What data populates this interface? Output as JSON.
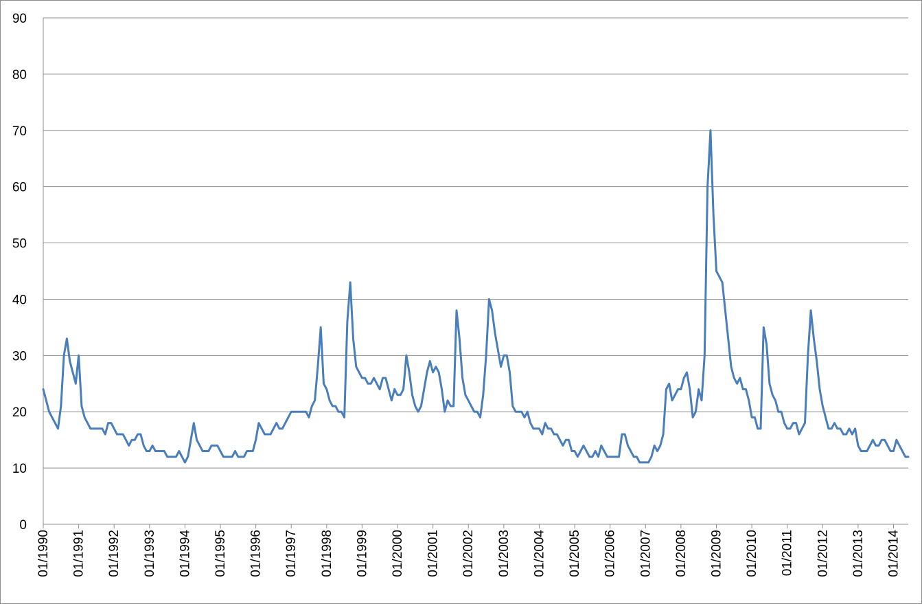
{
  "chart_data": {
    "type": "line",
    "title": "",
    "xlabel": "",
    "ylabel": "",
    "xlim": [
      "1990-01",
      "2014-06"
    ],
    "ylim": [
      0,
      90
    ],
    "ytick_labels": [
      "0",
      "10",
      "20",
      "30",
      "40",
      "50",
      "60",
      "70",
      "80",
      "90"
    ],
    "xtick_labels": [
      "01/1990",
      "01/1991",
      "01/1992",
      "01/1993",
      "01/1994",
      "01/1995",
      "01/1996",
      "01/1997",
      "01/1998",
      "01/1999",
      "01/2000",
      "01/2001",
      "01/2002",
      "01/2003",
      "01/2004",
      "01/2005",
      "01/2006",
      "01/2007",
      "01/2008",
      "01/2009",
      "01/2010",
      "01/2011",
      "01/2012",
      "01/2013",
      "01/2014"
    ],
    "grid": "horizontal",
    "legend": "none",
    "colors": {
      "line": "#4a7ebb",
      "grid": "#8c8c8c",
      "axis": "#8c8c8c"
    },
    "series": [
      {
        "x": [
          "1990-01",
          "1990-02",
          "1990-03",
          "1990-04",
          "1990-05",
          "1990-06",
          "1990-07",
          "1990-08",
          "1990-09",
          "1990-10",
          "1990-11",
          "1990-12",
          "1991-01",
          "1991-02",
          "1991-03",
          "1991-04",
          "1991-05",
          "1991-06",
          "1991-07",
          "1991-08",
          "1991-09",
          "1991-10",
          "1991-11",
          "1991-12",
          "1992-01",
          "1992-02",
          "1992-03",
          "1992-04",
          "1992-05",
          "1992-06",
          "1992-07",
          "1992-08",
          "1992-09",
          "1992-10",
          "1992-11",
          "1992-12",
          "1993-01",
          "1993-02",
          "1993-03",
          "1993-04",
          "1993-05",
          "1993-06",
          "1993-07",
          "1993-08",
          "1993-09",
          "1993-10",
          "1993-11",
          "1993-12",
          "1994-01",
          "1994-02",
          "1994-03",
          "1994-04",
          "1994-05",
          "1994-06",
          "1994-07",
          "1994-08",
          "1994-09",
          "1994-10",
          "1994-11",
          "1994-12",
          "1995-01",
          "1995-02",
          "1995-03",
          "1995-04",
          "1995-05",
          "1995-06",
          "1995-07",
          "1995-08",
          "1995-09",
          "1995-10",
          "1995-11",
          "1995-12",
          "1996-01",
          "1996-02",
          "1996-03",
          "1996-04",
          "1996-05",
          "1996-06",
          "1996-07",
          "1996-08",
          "1996-09",
          "1996-10",
          "1996-11",
          "1996-12",
          "1997-01",
          "1997-02",
          "1997-03",
          "1997-04",
          "1997-05",
          "1997-06",
          "1997-07",
          "1997-08",
          "1997-09",
          "1997-10",
          "1997-11",
          "1997-12",
          "1998-01",
          "1998-02",
          "1998-03",
          "1998-04",
          "1998-05",
          "1998-06",
          "1998-07",
          "1998-08",
          "1998-09",
          "1998-10",
          "1998-11",
          "1998-12",
          "1999-01",
          "1999-02",
          "1999-03",
          "1999-04",
          "1999-05",
          "1999-06",
          "1999-07",
          "1999-08",
          "1999-09",
          "1999-10",
          "1999-11",
          "1999-12",
          "2000-01",
          "2000-02",
          "2000-03",
          "2000-04",
          "2000-05",
          "2000-06",
          "2000-07",
          "2000-08",
          "2000-09",
          "2000-10",
          "2000-11",
          "2000-12",
          "2001-01",
          "2001-02",
          "2001-03",
          "2001-04",
          "2001-05",
          "2001-06",
          "2001-07",
          "2001-08",
          "2001-09",
          "2001-10",
          "2001-11",
          "2001-12",
          "2002-01",
          "2002-02",
          "2002-03",
          "2002-04",
          "2002-05",
          "2002-06",
          "2002-07",
          "2002-08",
          "2002-09",
          "2002-10",
          "2002-11",
          "2002-12",
          "2003-01",
          "2003-02",
          "2003-03",
          "2003-04",
          "2003-05",
          "2003-06",
          "2003-07",
          "2003-08",
          "2003-09",
          "2003-10",
          "2003-11",
          "2003-12",
          "2004-01",
          "2004-02",
          "2004-03",
          "2004-04",
          "2004-05",
          "2004-06",
          "2004-07",
          "2004-08",
          "2004-09",
          "2004-10",
          "2004-11",
          "2004-12",
          "2005-01",
          "2005-02",
          "2005-03",
          "2005-04",
          "2005-05",
          "2005-06",
          "2005-07",
          "2005-08",
          "2005-09",
          "2005-10",
          "2005-11",
          "2005-12",
          "2006-01",
          "2006-02",
          "2006-03",
          "2006-04",
          "2006-05",
          "2006-06",
          "2006-07",
          "2006-08",
          "2006-09",
          "2006-10",
          "2006-11",
          "2006-12",
          "2007-01",
          "2007-02",
          "2007-03",
          "2007-04",
          "2007-05",
          "2007-06",
          "2007-07",
          "2007-08",
          "2007-09",
          "2007-10",
          "2007-11",
          "2007-12",
          "2008-01",
          "2008-02",
          "2008-03",
          "2008-04",
          "2008-05",
          "2008-06",
          "2008-07",
          "2008-08",
          "2008-09",
          "2008-10",
          "2008-11",
          "2008-12",
          "2009-01",
          "2009-02",
          "2009-03",
          "2009-04",
          "2009-05",
          "2009-06",
          "2009-07",
          "2009-08",
          "2009-09",
          "2009-10",
          "2009-11",
          "2009-12",
          "2010-01",
          "2010-02",
          "2010-03",
          "2010-04",
          "2010-05",
          "2010-06",
          "2010-07",
          "2010-08",
          "2010-09",
          "2010-10",
          "2010-11",
          "2010-12",
          "2011-01",
          "2011-02",
          "2011-03",
          "2011-04",
          "2011-05",
          "2011-06",
          "2011-07",
          "2011-08",
          "2011-09",
          "2011-10",
          "2011-11",
          "2011-12",
          "2012-01",
          "2012-02",
          "2012-03",
          "2012-04",
          "2012-05",
          "2012-06",
          "2012-07",
          "2012-08",
          "2012-09",
          "2012-10",
          "2012-11",
          "2012-12",
          "2013-01",
          "2013-02",
          "2013-03",
          "2013-04",
          "2013-05",
          "2013-06",
          "2013-07",
          "2013-08",
          "2013-09",
          "2013-10",
          "2013-11",
          "2013-12",
          "2014-01",
          "2014-02",
          "2014-03",
          "2014-04",
          "2014-05",
          "2014-06"
        ],
        "values": [
          24,
          22,
          20,
          19,
          18,
          17,
          21,
          30,
          33,
          29,
          27,
          25,
          30,
          21,
          19,
          18,
          17,
          17,
          17,
          17,
          17,
          16,
          18,
          18,
          17,
          16,
          16,
          16,
          15,
          14,
          15,
          15,
          16,
          16,
          14,
          13,
          13,
          14,
          13,
          13,
          13,
          13,
          12,
          12,
          12,
          12,
          13,
          12,
          11,
          12,
          15,
          18,
          15,
          14,
          13,
          13,
          13,
          14,
          14,
          14,
          13,
          12,
          12,
          12,
          12,
          13,
          12,
          12,
          12,
          13,
          13,
          13,
          15,
          18,
          17,
          16,
          16,
          16,
          17,
          18,
          17,
          17,
          18,
          19,
          20,
          20,
          20,
          20,
          20,
          20,
          19,
          21,
          22,
          28,
          35,
          25,
          24,
          22,
          21,
          21,
          20,
          20,
          19,
          36,
          43,
          33,
          28,
          27,
          26,
          26,
          25,
          25,
          26,
          25,
          24,
          26,
          26,
          24,
          22,
          24,
          23,
          23,
          24,
          30,
          27,
          23,
          21,
          20,
          21,
          24,
          27,
          29,
          27,
          28,
          27,
          24,
          20,
          22,
          21,
          21,
          38,
          33,
          26,
          23,
          22,
          21,
          20,
          20,
          19,
          23,
          30,
          40,
          38,
          34,
          31,
          28,
          30,
          30,
          27,
          21,
          20,
          20,
          20,
          19,
          20,
          18,
          17,
          17,
          17,
          16,
          18,
          17,
          17,
          16,
          16,
          15,
          14,
          15,
          15,
          13,
          13,
          12,
          13,
          14,
          13,
          12,
          12,
          13,
          12,
          14,
          13,
          12,
          12,
          12,
          12,
          12,
          16,
          16,
          14,
          13,
          12,
          12,
          11,
          11,
          11,
          11,
          12,
          14,
          13,
          14,
          16,
          24,
          25,
          22,
          23,
          24,
          24,
          26,
          27,
          24,
          19,
          20,
          24,
          22,
          30,
          60,
          70,
          55,
          45,
          44,
          43,
          38,
          33,
          28,
          26,
          25,
          26,
          24,
          24,
          22,
          19,
          19,
          17,
          17,
          35,
          32,
          25,
          23,
          22,
          20,
          20,
          18,
          17,
          17,
          18,
          18,
          16,
          17,
          18,
          30,
          38,
          33,
          29,
          24,
          21,
          19,
          17,
          17,
          18,
          17,
          17,
          16,
          16,
          17,
          16,
          17,
          14,
          13,
          13,
          13,
          14,
          15,
          14,
          14,
          15,
          15,
          14,
          13,
          13,
          15,
          14,
          13,
          12,
          12
        ]
      }
    ]
  }
}
